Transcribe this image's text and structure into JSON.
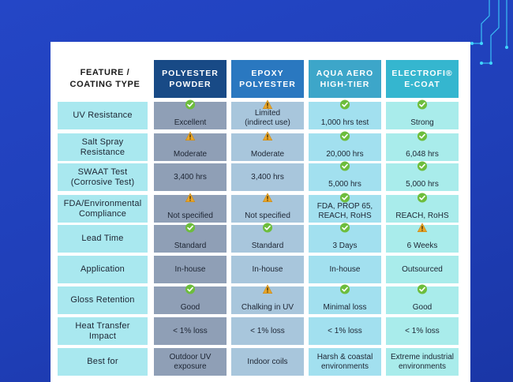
{
  "colors": {
    "background": "#1f3fb8",
    "header_polyester": "#184a86",
    "header_epoxy": "#2a78c0",
    "header_aqua": "#3da6c9",
    "header_electrofi": "#35b6cf",
    "row_label": "#a9e8ef",
    "check_green": "#6dbd3c",
    "warning_amber": "#e8a52a"
  },
  "table": {
    "corner_header": "FEATURE /\nCOATING TYPE",
    "columns": [
      {
        "label": "POLYESTER\nPOWDER"
      },
      {
        "label": "EPOXY\nPOLYESTER"
      },
      {
        "label": "AQUA AERO\nHIGH-TIER"
      },
      {
        "label": "ELECTROFI®\nE-COAT"
      }
    ],
    "rows": [
      {
        "feature": "UV Resistance",
        "cells": [
          {
            "text": "Excellent",
            "icon": "check-icon"
          },
          {
            "text": "Limited\n(indirect use)",
            "icon": "warning-icon"
          },
          {
            "text": "1,000 hrs test",
            "icon": "check-icon"
          },
          {
            "text": "Strong",
            "icon": "check-icon"
          }
        ]
      },
      {
        "feature": "Salt Spray\nResistance",
        "cells": [
          {
            "text": "Moderate",
            "icon": "warning-icon"
          },
          {
            "text": "Moderate",
            "icon": "warning-icon"
          },
          {
            "text": "20,000 hrs",
            "icon": "check-icon"
          },
          {
            "text": "6,048 hrs",
            "icon": "check-icon"
          }
        ]
      },
      {
        "feature": "SWAAT Test\n(Corrosive Test)",
        "cells": [
          {
            "text": "3,400 hrs",
            "icon": ""
          },
          {
            "text": "3,400 hrs",
            "icon": ""
          },
          {
            "text": "5,000 hrs",
            "icon": "check-icon"
          },
          {
            "text": "5,000 hrs",
            "icon": "check-icon"
          }
        ]
      },
      {
        "feature": "FDA/Environmental\nCompliance",
        "cells": [
          {
            "text": "Not specified",
            "icon": "warning-icon"
          },
          {
            "text": "Not specified",
            "icon": "warning-icon"
          },
          {
            "text": "FDA, PROP 65,\nREACH, RoHS",
            "icon": "check-icon"
          },
          {
            "text": "REACH, RoHS",
            "icon": "check-icon"
          }
        ]
      },
      {
        "feature": "Lead Time",
        "cells": [
          {
            "text": "Standard",
            "icon": "check-icon"
          },
          {
            "text": "Standard",
            "icon": "check-icon"
          },
          {
            "text": "3 Days",
            "icon": "check-icon"
          },
          {
            "text": "6 Weeks",
            "icon": "warning-icon"
          }
        ]
      },
      {
        "feature": "Application",
        "cells": [
          {
            "text": "In-house",
            "icon": ""
          },
          {
            "text": "In-house",
            "icon": ""
          },
          {
            "text": "In-house",
            "icon": ""
          },
          {
            "text": "Outsourced",
            "icon": ""
          }
        ]
      },
      {
        "feature": "Gloss Retention",
        "cells": [
          {
            "text": "Good",
            "icon": "check-icon"
          },
          {
            "text": "Chalking in UV",
            "icon": "warning-icon"
          },
          {
            "text": "Minimal loss",
            "icon": "check-icon"
          },
          {
            "text": "Good",
            "icon": "check-icon"
          }
        ]
      },
      {
        "feature": "Heat Transfer\nImpact",
        "cells": [
          {
            "text": "< 1% loss",
            "icon": ""
          },
          {
            "text": "< 1% loss",
            "icon": ""
          },
          {
            "text": "< 1% loss",
            "icon": ""
          },
          {
            "text": "< 1% loss",
            "icon": ""
          }
        ]
      },
      {
        "feature": "Best for",
        "cells": [
          {
            "text": "Outdoor UV\nexposure",
            "icon": ""
          },
          {
            "text": "Indoor coils",
            "icon": ""
          },
          {
            "text": "Harsh & coastal\nenvironments",
            "icon": ""
          },
          {
            "text": "Extreme industrial\nenvironments",
            "icon": ""
          }
        ]
      }
    ]
  }
}
